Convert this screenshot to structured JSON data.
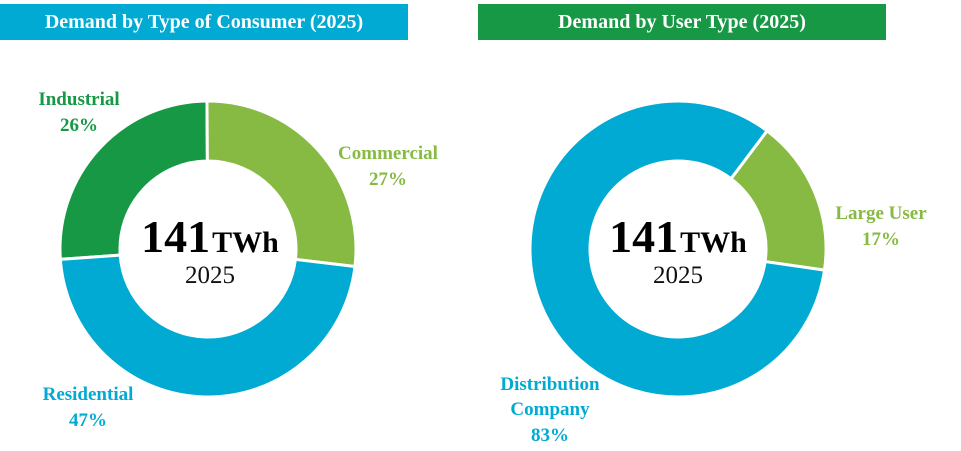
{
  "colors": {
    "industrial": "#169845",
    "commercial": "#86BA42",
    "residential": "#00AAD2",
    "distribution": "#00AAD2",
    "large_user": "#86BA42",
    "banner_left": "#00AAD2",
    "banner_right": "#169845"
  },
  "chart_data": [
    {
      "type": "pie",
      "title": "Demand by Type of Consumer (2025)",
      "center_value": "141",
      "center_unit": "TWh",
      "center_year": "2025",
      "slices": [
        {
          "name": "Industrial",
          "value": 26,
          "label": "26%",
          "color": "#169845"
        },
        {
          "name": "Commercial",
          "value": 27,
          "label": "27%",
          "color": "#86BA42"
        },
        {
          "name": "Residential",
          "value": 47,
          "label": "47%",
          "color": "#00AAD2"
        }
      ]
    },
    {
      "type": "pie",
      "title": "Demand by User Type (2025)",
      "center_value": "141",
      "center_unit": "TWh",
      "center_year": "2025",
      "slices": [
        {
          "name": "Large User",
          "value": 17,
          "label": "17%",
          "color": "#86BA42"
        },
        {
          "name": "Distribution",
          "name_line2": "Company",
          "value": 83,
          "label": "83%",
          "color": "#00AAD2"
        }
      ]
    }
  ]
}
